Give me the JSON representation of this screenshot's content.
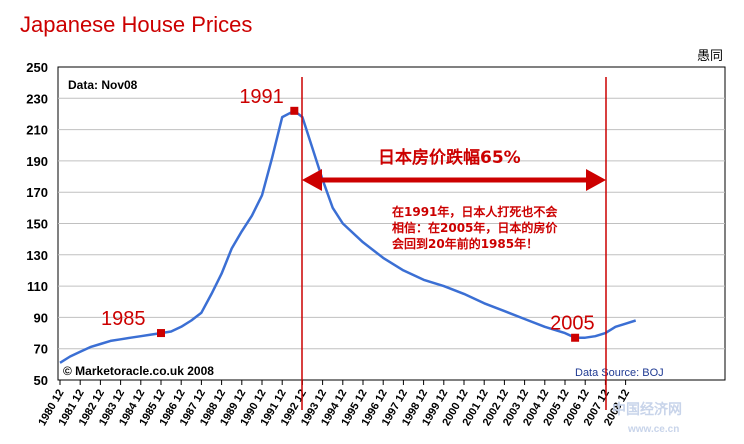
{
  "chart_data": {
    "type": "line",
    "title": "Japanese House Prices",
    "data_note": "Data: Nov08",
    "source": "Data Source: BOJ",
    "copyright": "© Marketoracle.co.uk 2008",
    "corner_label": "愚同",
    "xlabel": "",
    "ylabel": "",
    "ylim": [
      50,
      250
    ],
    "yticks": [
      250,
      230,
      210,
      190,
      170,
      150,
      130,
      110,
      90,
      70,
      50
    ],
    "categories": [
      "1980 12",
      "1981 12",
      "1982 12",
      "1983 12",
      "1984 12",
      "1985 12",
      "1986 12",
      "1987 12",
      "1988 12",
      "1989 12",
      "1990 12",
      "1991 12",
      "1992 12",
      "1993 12",
      "1994 12",
      "1995 12",
      "1996 12",
      "1997 12",
      "1998 12",
      "1999 12",
      "2000 12",
      "2001 12",
      "2002 12",
      "2003 12",
      "2004 12",
      "2005 12",
      "2006 12",
      "2007 12",
      "2008 12"
    ],
    "series": [
      {
        "color": "#3b6fd4",
        "points": [
          [
            0.0,
            61
          ],
          [
            0.5,
            65
          ],
          [
            1.0,
            68
          ],
          [
            1.5,
            71
          ],
          [
            2.0,
            73
          ],
          [
            2.5,
            75
          ],
          [
            3.0,
            76
          ],
          [
            3.5,
            77
          ],
          [
            4.0,
            78
          ],
          [
            4.5,
            79
          ],
          [
            5.0,
            80
          ],
          [
            5.5,
            81
          ],
          [
            6.0,
            84
          ],
          [
            6.5,
            88
          ],
          [
            7.0,
            93
          ],
          [
            7.5,
            105
          ],
          [
            8.0,
            118
          ],
          [
            8.5,
            134
          ],
          [
            9.0,
            145
          ],
          [
            9.5,
            155
          ],
          [
            10.0,
            168
          ],
          [
            10.5,
            192
          ],
          [
            11.0,
            218
          ],
          [
            11.6,
            222
          ],
          [
            12.0,
            218
          ],
          [
            12.5,
            198
          ],
          [
            13.0,
            178
          ],
          [
            13.5,
            160
          ],
          [
            14.0,
            150
          ],
          [
            15.0,
            138
          ],
          [
            16.0,
            128
          ],
          [
            17.0,
            120
          ],
          [
            18.0,
            114
          ],
          [
            19.0,
            110
          ],
          [
            20.0,
            105
          ],
          [
            21.0,
            99
          ],
          [
            22.0,
            94
          ],
          [
            23.0,
            89
          ],
          [
            24.0,
            84
          ],
          [
            25.0,
            80
          ],
          [
            25.5,
            77
          ],
          [
            26.0,
            77
          ],
          [
            26.5,
            78
          ],
          [
            27.0,
            80
          ],
          [
            27.5,
            84
          ],
          [
            28.0,
            86
          ],
          [
            28.5,
            88
          ]
        ]
      }
    ],
    "annotations": [
      {
        "label": "1985",
        "x": 5.0,
        "y": 80
      },
      {
        "label": "1991",
        "x": 11.6,
        "y": 222
      },
      {
        "label": "2005",
        "x": 25.5,
        "y": 77
      }
    ],
    "drop_label": "日本房价跌幅65%",
    "note_lines": [
      "在1991年，日本人打死也不会",
      "相信：在2005年，日本的房价",
      "会回到20年前的1985年！"
    ],
    "colors": {
      "annotation": "#cc0000",
      "line": "#3b6fd4"
    }
  },
  "watermark": {
    "text": "中国经济网",
    "sub": "www.ce.cn"
  }
}
